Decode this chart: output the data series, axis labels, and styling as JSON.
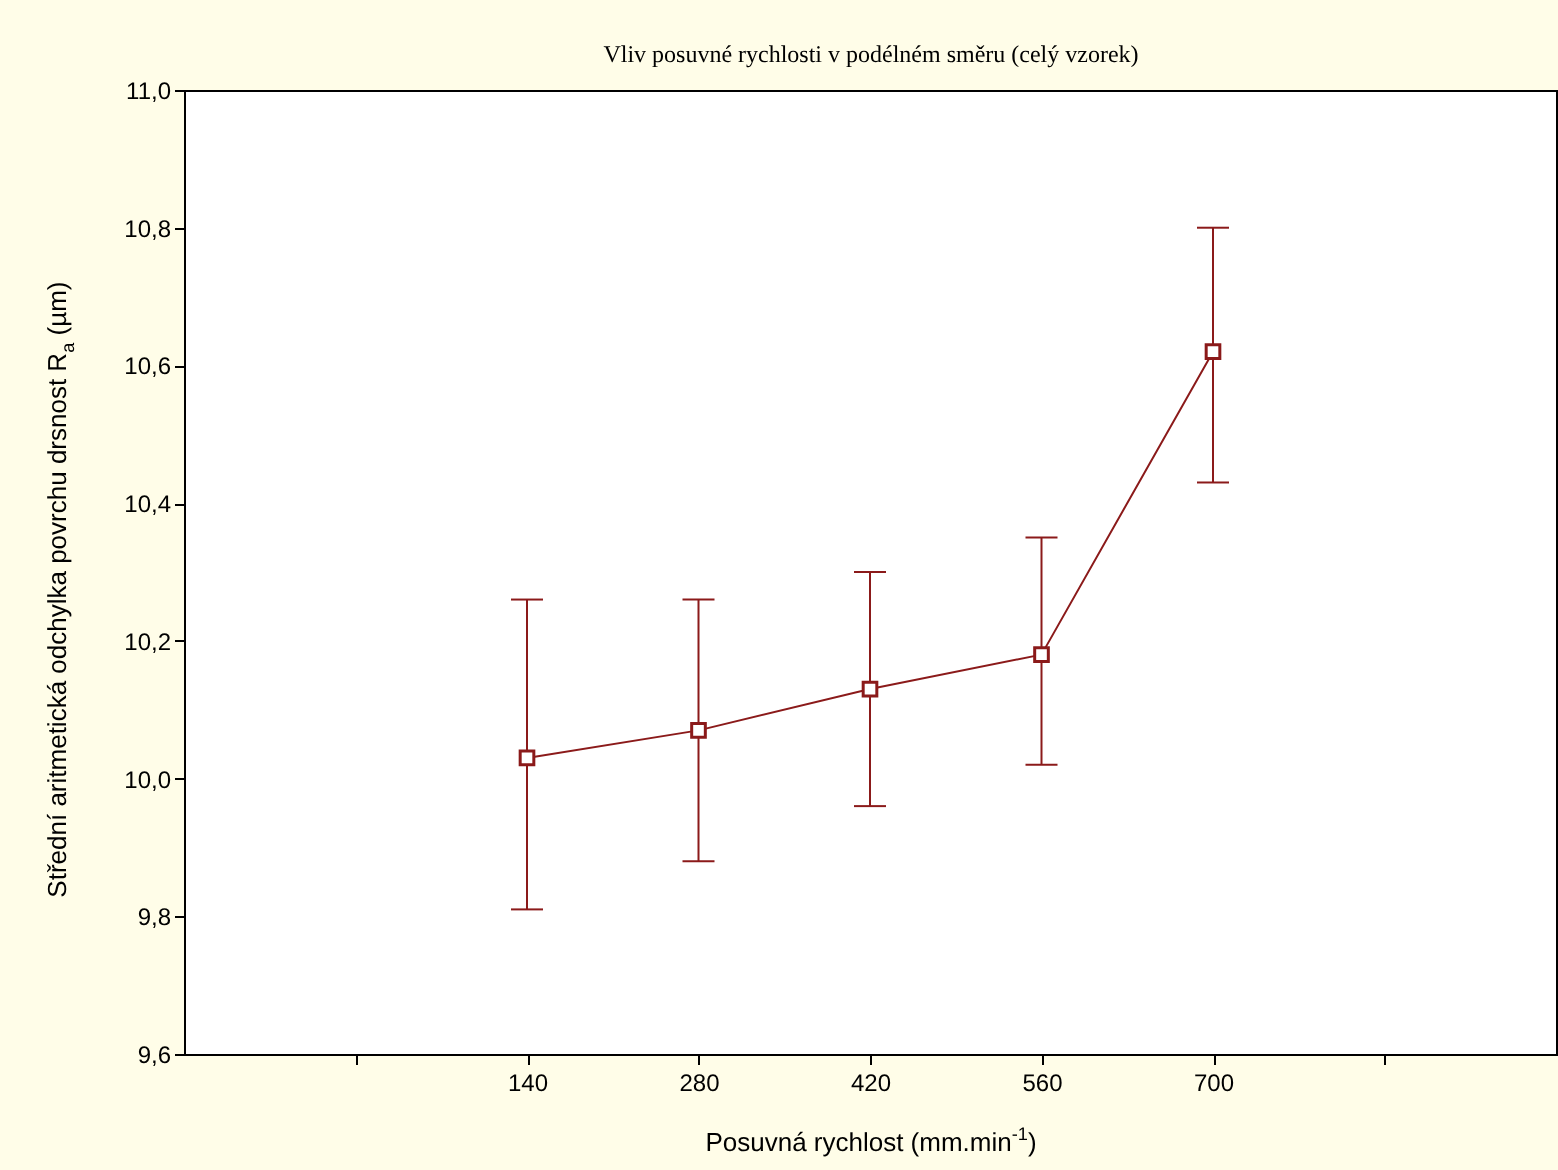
{
  "chart_data": {
    "type": "line",
    "title": "Vliv posuvné rychlosti v podélném směru (celý vzorek)",
    "xlabel": "Posuvná rychlost (mm.min$^{-1}$)",
    "ylabel": "Střední aritmetická odchylka povrchu drsnost R$_{a}$ (µm)",
    "x": [
      140,
      280,
      420,
      560,
      700
    ],
    "series": [
      {
        "color": "#8b1a1a",
        "values": [
          10.03,
          10.07,
          10.13,
          10.18,
          10.62
        ],
        "errors": [
          [
            9.81,
            10.26
          ],
          [
            9.88,
            10.26
          ],
          [
            9.96,
            10.3
          ],
          [
            10.02,
            10.35
          ],
          [
            10.43,
            10.8
          ]
        ]
      }
    ],
    "xlim": [
      -140,
      980
    ],
    "xticks": [
      {
        "value": 0,
        "label": null
      },
      140,
      280,
      420,
      560,
      700,
      {
        "value": 840,
        "label": null
      }
    ],
    "ylim": [
      9.6,
      11.0
    ],
    "yticks": [
      {
        "value": 9.6,
        "label": "9,6"
      },
      {
        "value": 9.8,
        "label": "9,8"
      },
      {
        "value": 10.0,
        "label": "10,0"
      },
      {
        "value": 10.2,
        "label": "10,2"
      },
      {
        "value": 10.4,
        "label": "10,4"
      },
      {
        "value": 10.6,
        "label": "10,6"
      },
      {
        "value": 10.8,
        "label": "10,8"
      },
      {
        "value": 11.0,
        "label": "11,0"
      }
    ],
    "marker": "square",
    "grid": false
  }
}
